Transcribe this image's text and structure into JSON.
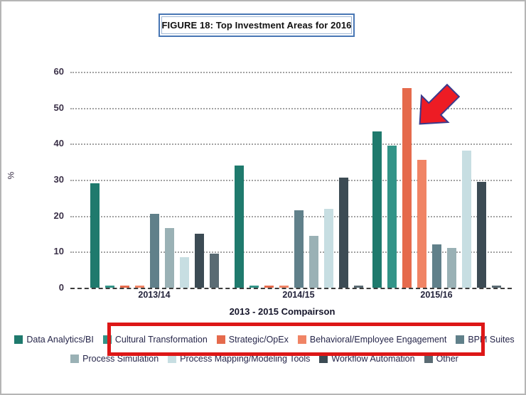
{
  "figure": {
    "boxed_title": "FIGURE 18: Top Investment Areas for 2016",
    "title_border_color": "#4776b4",
    "page_border_color": "#b5b5b5"
  },
  "chart_data": {
    "type": "bar",
    "title": "FIGURE 18: Top Investment Areas for 2016",
    "xlabel": "2013 - 2015 Compairson",
    "ylabel": "%",
    "categories": [
      "2013/14",
      "2014/15",
      "2015/16"
    ],
    "y_ticks": [
      0,
      10,
      20,
      30,
      40,
      50,
      60
    ],
    "ylim": [
      0,
      60
    ],
    "grid": "horizontal dotted gridlines, dashed zero baseline",
    "legend_position": "bottom, two centered rows",
    "series": [
      {
        "name": "Data Analytics/BI",
        "color": "#1f7a6d",
        "values": [
          29,
          34,
          43.5
        ]
      },
      {
        "name": "Cultural Transformation",
        "color": "#339488",
        "values": [
          0.5,
          0.5,
          39.5
        ]
      },
      {
        "name": "Strategic/OpEx",
        "color": "#e56a4c",
        "values": [
          0.5,
          0.5,
          55.5
        ]
      },
      {
        "name": "Behavioral/Employee Engagement",
        "color": "#f08465",
        "values": [
          0.5,
          0.5,
          35.5
        ]
      },
      {
        "name": "BPM Suites",
        "color": "#60808a",
        "values": [
          20.5,
          21.5,
          12
        ]
      },
      {
        "name": "Process Simulation",
        "color": "#9ab1b5",
        "values": [
          16.5,
          14.5,
          11
        ]
      },
      {
        "name": "Process Mapping/Modeling Tools",
        "color": "#c7dee2",
        "values": [
          8.5,
          22,
          38
        ]
      },
      {
        "name": "Workflow Automation",
        "color": "#3c4b54",
        "values": [
          15,
          30.5,
          29.5
        ]
      },
      {
        "name": "Other",
        "color": "#5a6b73",
        "values": [
          9.5,
          0.5,
          0.5
        ]
      }
    ],
    "legend_rows": [
      [
        0,
        1,
        2,
        3,
        4
      ],
      [
        5,
        6,
        7,
        8
      ]
    ],
    "annotations": [
      {
        "type": "block-arrow",
        "direction": "down-left",
        "target": "Strategic/OpEx bar in 2015/16",
        "fill": "#ed1c24",
        "outline": "#3a3a8c"
      },
      {
        "type": "highlight-rectangle",
        "color": "#dd1717",
        "around": "legend items Cultural Transformation, Strategic/OpEx, Behavioral/Employee Engagement"
      }
    ]
  }
}
